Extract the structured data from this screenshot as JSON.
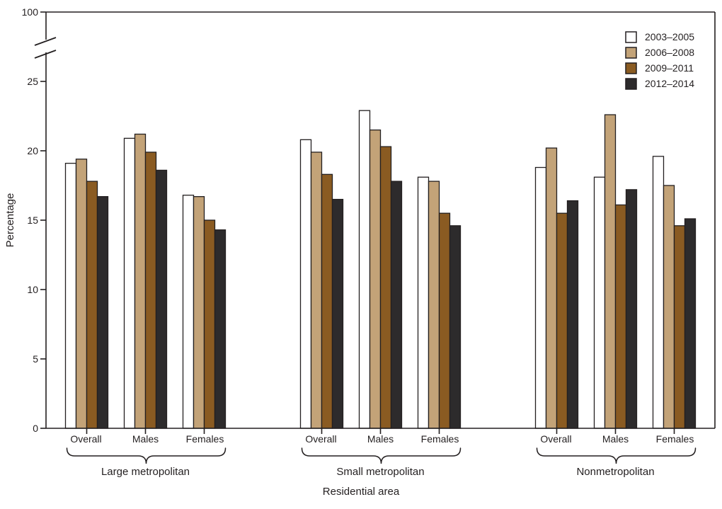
{
  "chart_data": {
    "type": "bar",
    "title": "",
    "ylabel": "Percentage",
    "xlabel": "Residential area",
    "grid": false,
    "legend_position": "top-right",
    "y_axis": {
      "ticks": [
        0,
        5,
        10,
        15,
        20,
        25
      ],
      "break_top_label": "100",
      "has_break": true,
      "shown_range": [
        0,
        25
      ],
      "full_range_top": 100
    },
    "subcategories": [
      "Overall",
      "Males",
      "Females"
    ],
    "groups": [
      {
        "label": "Large metropolitan"
      },
      {
        "label": "Small metropolitan"
      },
      {
        "label": "Nonmetropolitan"
      }
    ],
    "series": [
      {
        "name": "2003–2005",
        "color": "#ffffff",
        "values": [
          [
            19.1,
            20.9,
            16.8
          ],
          [
            20.8,
            22.9,
            18.1
          ],
          [
            18.8,
            18.1,
            19.6
          ]
        ]
      },
      {
        "name": "2006–2008",
        "color": "#c3a378",
        "values": [
          [
            19.4,
            21.2,
            16.7
          ],
          [
            19.9,
            21.5,
            17.8
          ],
          [
            20.2,
            22.6,
            17.5
          ]
        ]
      },
      {
        "name": "2009–2011",
        "color": "#8a5b22",
        "values": [
          [
            17.8,
            19.9,
            15.0
          ],
          [
            18.3,
            20.3,
            15.5
          ],
          [
            15.5,
            16.1,
            14.6
          ]
        ]
      },
      {
        "name": "2012–2014",
        "color": "#2d2b2c",
        "values": [
          [
            16.7,
            18.6,
            14.3
          ],
          [
            16.5,
            17.8,
            14.6
          ],
          [
            16.4,
            17.2,
            15.1
          ]
        ]
      }
    ],
    "colors": {
      "axis": "#231f20",
      "text": "#231f20",
      "background": "#ffffff"
    }
  }
}
